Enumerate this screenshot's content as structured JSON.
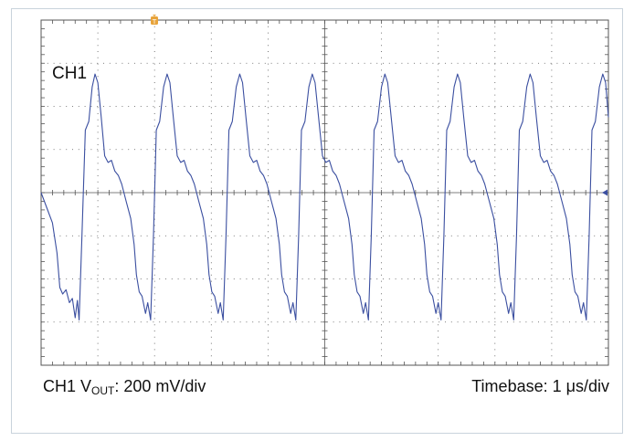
{
  "channel_label": "CH1",
  "scale": {
    "ch_prefix": "CH1 V",
    "ch_sub": "OUT",
    "ch_suffix": ": 200 mV/div",
    "timebase": "Timebase: 1 μs/div"
  },
  "colors": {
    "trace": "#3b4fa0",
    "graticule": "#555555",
    "trigger_marker": "#e8a33a",
    "frame": "#c9d3dc"
  },
  "icons": {
    "trigger": "trigger-position-marker-icon",
    "level": "channel-level-arrow-icon"
  },
  "chart_data": {
    "type": "line",
    "title": "",
    "xlabel": "",
    "ylabel": "",
    "x_unit": "div",
    "y_unit": "div",
    "xlim": [
      0,
      10
    ],
    "ylim": [
      -4,
      4
    ],
    "grid": true,
    "x_divisions": 10,
    "y_divisions": 8,
    "series": [
      {
        "values_xy": [
          [
            0.0,
            0.0
          ],
          [
            0.1,
            -0.35
          ],
          [
            0.2,
            -0.7
          ],
          [
            0.28,
            -1.4
          ],
          [
            0.33,
            -2.2
          ],
          [
            0.38,
            -2.35
          ],
          [
            0.44,
            -2.25
          ],
          [
            0.5,
            -2.55
          ],
          [
            0.55,
            -2.45
          ],
          [
            0.6,
            -2.9
          ],
          [
            0.64,
            -2.5
          ],
          [
            0.67,
            -2.95
          ],
          [
            0.72,
            -1.0
          ],
          [
            0.78,
            1.45
          ],
          [
            0.84,
            1.65
          ],
          [
            0.9,
            2.45
          ],
          [
            0.95,
            2.75
          ],
          [
            1.0,
            2.55
          ],
          [
            1.06,
            1.75
          ],
          [
            1.12,
            0.85
          ],
          [
            1.18,
            0.7
          ],
          [
            1.24,
            0.75
          ],
          [
            1.3,
            0.5
          ],
          [
            1.36,
            0.4
          ],
          [
            1.42,
            0.2
          ],
          [
            1.5,
            -0.2
          ],
          [
            1.58,
            -0.6
          ],
          [
            1.64,
            -1.2
          ],
          [
            1.68,
            -1.9
          ],
          [
            1.73,
            -2.3
          ],
          [
            1.78,
            -2.4
          ],
          [
            1.84,
            -2.8
          ],
          [
            1.88,
            -2.55
          ],
          [
            1.93,
            -2.95
          ],
          [
            1.98,
            -1.0
          ],
          [
            2.03,
            1.45
          ],
          [
            2.09,
            1.65
          ],
          [
            2.16,
            2.45
          ],
          [
            2.22,
            2.75
          ],
          [
            2.27,
            2.55
          ],
          [
            2.33,
            1.75
          ],
          [
            2.4,
            0.85
          ],
          [
            2.46,
            0.7
          ],
          [
            2.52,
            0.75
          ],
          [
            2.58,
            0.5
          ],
          [
            2.64,
            0.4
          ],
          [
            2.7,
            0.2
          ],
          [
            2.78,
            -0.2
          ],
          [
            2.86,
            -0.6
          ],
          [
            2.92,
            -1.2
          ],
          [
            2.96,
            -1.9
          ],
          [
            3.01,
            -2.3
          ],
          [
            3.06,
            -2.4
          ],
          [
            3.12,
            -2.8
          ],
          [
            3.16,
            -2.55
          ],
          [
            3.21,
            -2.95
          ],
          [
            3.26,
            -1.0
          ],
          [
            3.31,
            1.45
          ],
          [
            3.37,
            1.65
          ],
          [
            3.44,
            2.45
          ],
          [
            3.5,
            2.75
          ],
          [
            3.55,
            2.55
          ],
          [
            3.61,
            1.75
          ],
          [
            3.68,
            0.85
          ],
          [
            3.74,
            0.7
          ],
          [
            3.8,
            0.75
          ],
          [
            3.86,
            0.5
          ],
          [
            3.92,
            0.4
          ],
          [
            3.98,
            0.2
          ],
          [
            4.06,
            -0.2
          ],
          [
            4.14,
            -0.6
          ],
          [
            4.2,
            -1.2
          ],
          [
            4.24,
            -1.9
          ],
          [
            4.29,
            -2.3
          ],
          [
            4.34,
            -2.4
          ],
          [
            4.4,
            -2.8
          ],
          [
            4.44,
            -2.55
          ],
          [
            4.49,
            -2.95
          ],
          [
            4.54,
            -1.0
          ],
          [
            4.59,
            1.45
          ],
          [
            4.65,
            1.65
          ],
          [
            4.72,
            2.45
          ],
          [
            4.78,
            2.75
          ],
          [
            4.83,
            2.55
          ],
          [
            4.89,
            1.75
          ],
          [
            4.96,
            0.85
          ],
          [
            5.02,
            0.7
          ],
          [
            5.08,
            0.75
          ],
          [
            5.14,
            0.5
          ],
          [
            5.2,
            0.4
          ],
          [
            5.26,
            0.2
          ],
          [
            5.34,
            -0.2
          ],
          [
            5.42,
            -0.6
          ],
          [
            5.48,
            -1.2
          ],
          [
            5.52,
            -1.9
          ],
          [
            5.57,
            -2.3
          ],
          [
            5.62,
            -2.4
          ],
          [
            5.68,
            -2.8
          ],
          [
            5.72,
            -2.55
          ],
          [
            5.77,
            -2.95
          ],
          [
            5.82,
            -1.0
          ],
          [
            5.87,
            1.45
          ],
          [
            5.93,
            1.65
          ],
          [
            6.0,
            2.45
          ],
          [
            6.06,
            2.75
          ],
          [
            6.11,
            2.55
          ],
          [
            6.17,
            1.75
          ],
          [
            6.24,
            0.85
          ],
          [
            6.3,
            0.7
          ],
          [
            6.36,
            0.75
          ],
          [
            6.42,
            0.5
          ],
          [
            6.48,
            0.4
          ],
          [
            6.54,
            0.2
          ],
          [
            6.62,
            -0.2
          ],
          [
            6.7,
            -0.6
          ],
          [
            6.76,
            -1.2
          ],
          [
            6.8,
            -1.9
          ],
          [
            6.85,
            -2.3
          ],
          [
            6.9,
            -2.4
          ],
          [
            6.96,
            -2.8
          ],
          [
            7.0,
            -2.55
          ],
          [
            7.05,
            -2.95
          ],
          [
            7.1,
            -1.0
          ],
          [
            7.15,
            1.45
          ],
          [
            7.21,
            1.65
          ],
          [
            7.28,
            2.45
          ],
          [
            7.34,
            2.75
          ],
          [
            7.39,
            2.55
          ],
          [
            7.45,
            1.75
          ],
          [
            7.52,
            0.85
          ],
          [
            7.58,
            0.7
          ],
          [
            7.64,
            0.75
          ],
          [
            7.7,
            0.5
          ],
          [
            7.76,
            0.4
          ],
          [
            7.82,
            0.2
          ],
          [
            7.9,
            -0.2
          ],
          [
            7.98,
            -0.6
          ],
          [
            8.04,
            -1.2
          ],
          [
            8.08,
            -1.9
          ],
          [
            8.13,
            -2.3
          ],
          [
            8.18,
            -2.4
          ],
          [
            8.24,
            -2.8
          ],
          [
            8.28,
            -2.55
          ],
          [
            8.33,
            -2.95
          ],
          [
            8.38,
            -1.0
          ],
          [
            8.43,
            1.45
          ],
          [
            8.49,
            1.65
          ],
          [
            8.56,
            2.45
          ],
          [
            8.62,
            2.75
          ],
          [
            8.67,
            2.55
          ],
          [
            8.73,
            1.75
          ],
          [
            8.8,
            0.85
          ],
          [
            8.86,
            0.7
          ],
          [
            8.92,
            0.75
          ],
          [
            8.98,
            0.5
          ],
          [
            9.04,
            0.4
          ],
          [
            9.1,
            0.2
          ],
          [
            9.18,
            -0.2
          ],
          [
            9.26,
            -0.6
          ],
          [
            9.32,
            -1.2
          ],
          [
            9.36,
            -1.9
          ],
          [
            9.41,
            -2.3
          ],
          [
            9.46,
            -2.4
          ],
          [
            9.52,
            -2.8
          ],
          [
            9.56,
            -2.55
          ],
          [
            9.61,
            -2.95
          ],
          [
            9.66,
            -1.0
          ],
          [
            9.71,
            1.45
          ],
          [
            9.77,
            1.65
          ],
          [
            9.84,
            2.45
          ],
          [
            9.9,
            2.75
          ],
          [
            9.95,
            2.55
          ],
          [
            10.0,
            1.75
          ]
        ]
      }
    ]
  }
}
